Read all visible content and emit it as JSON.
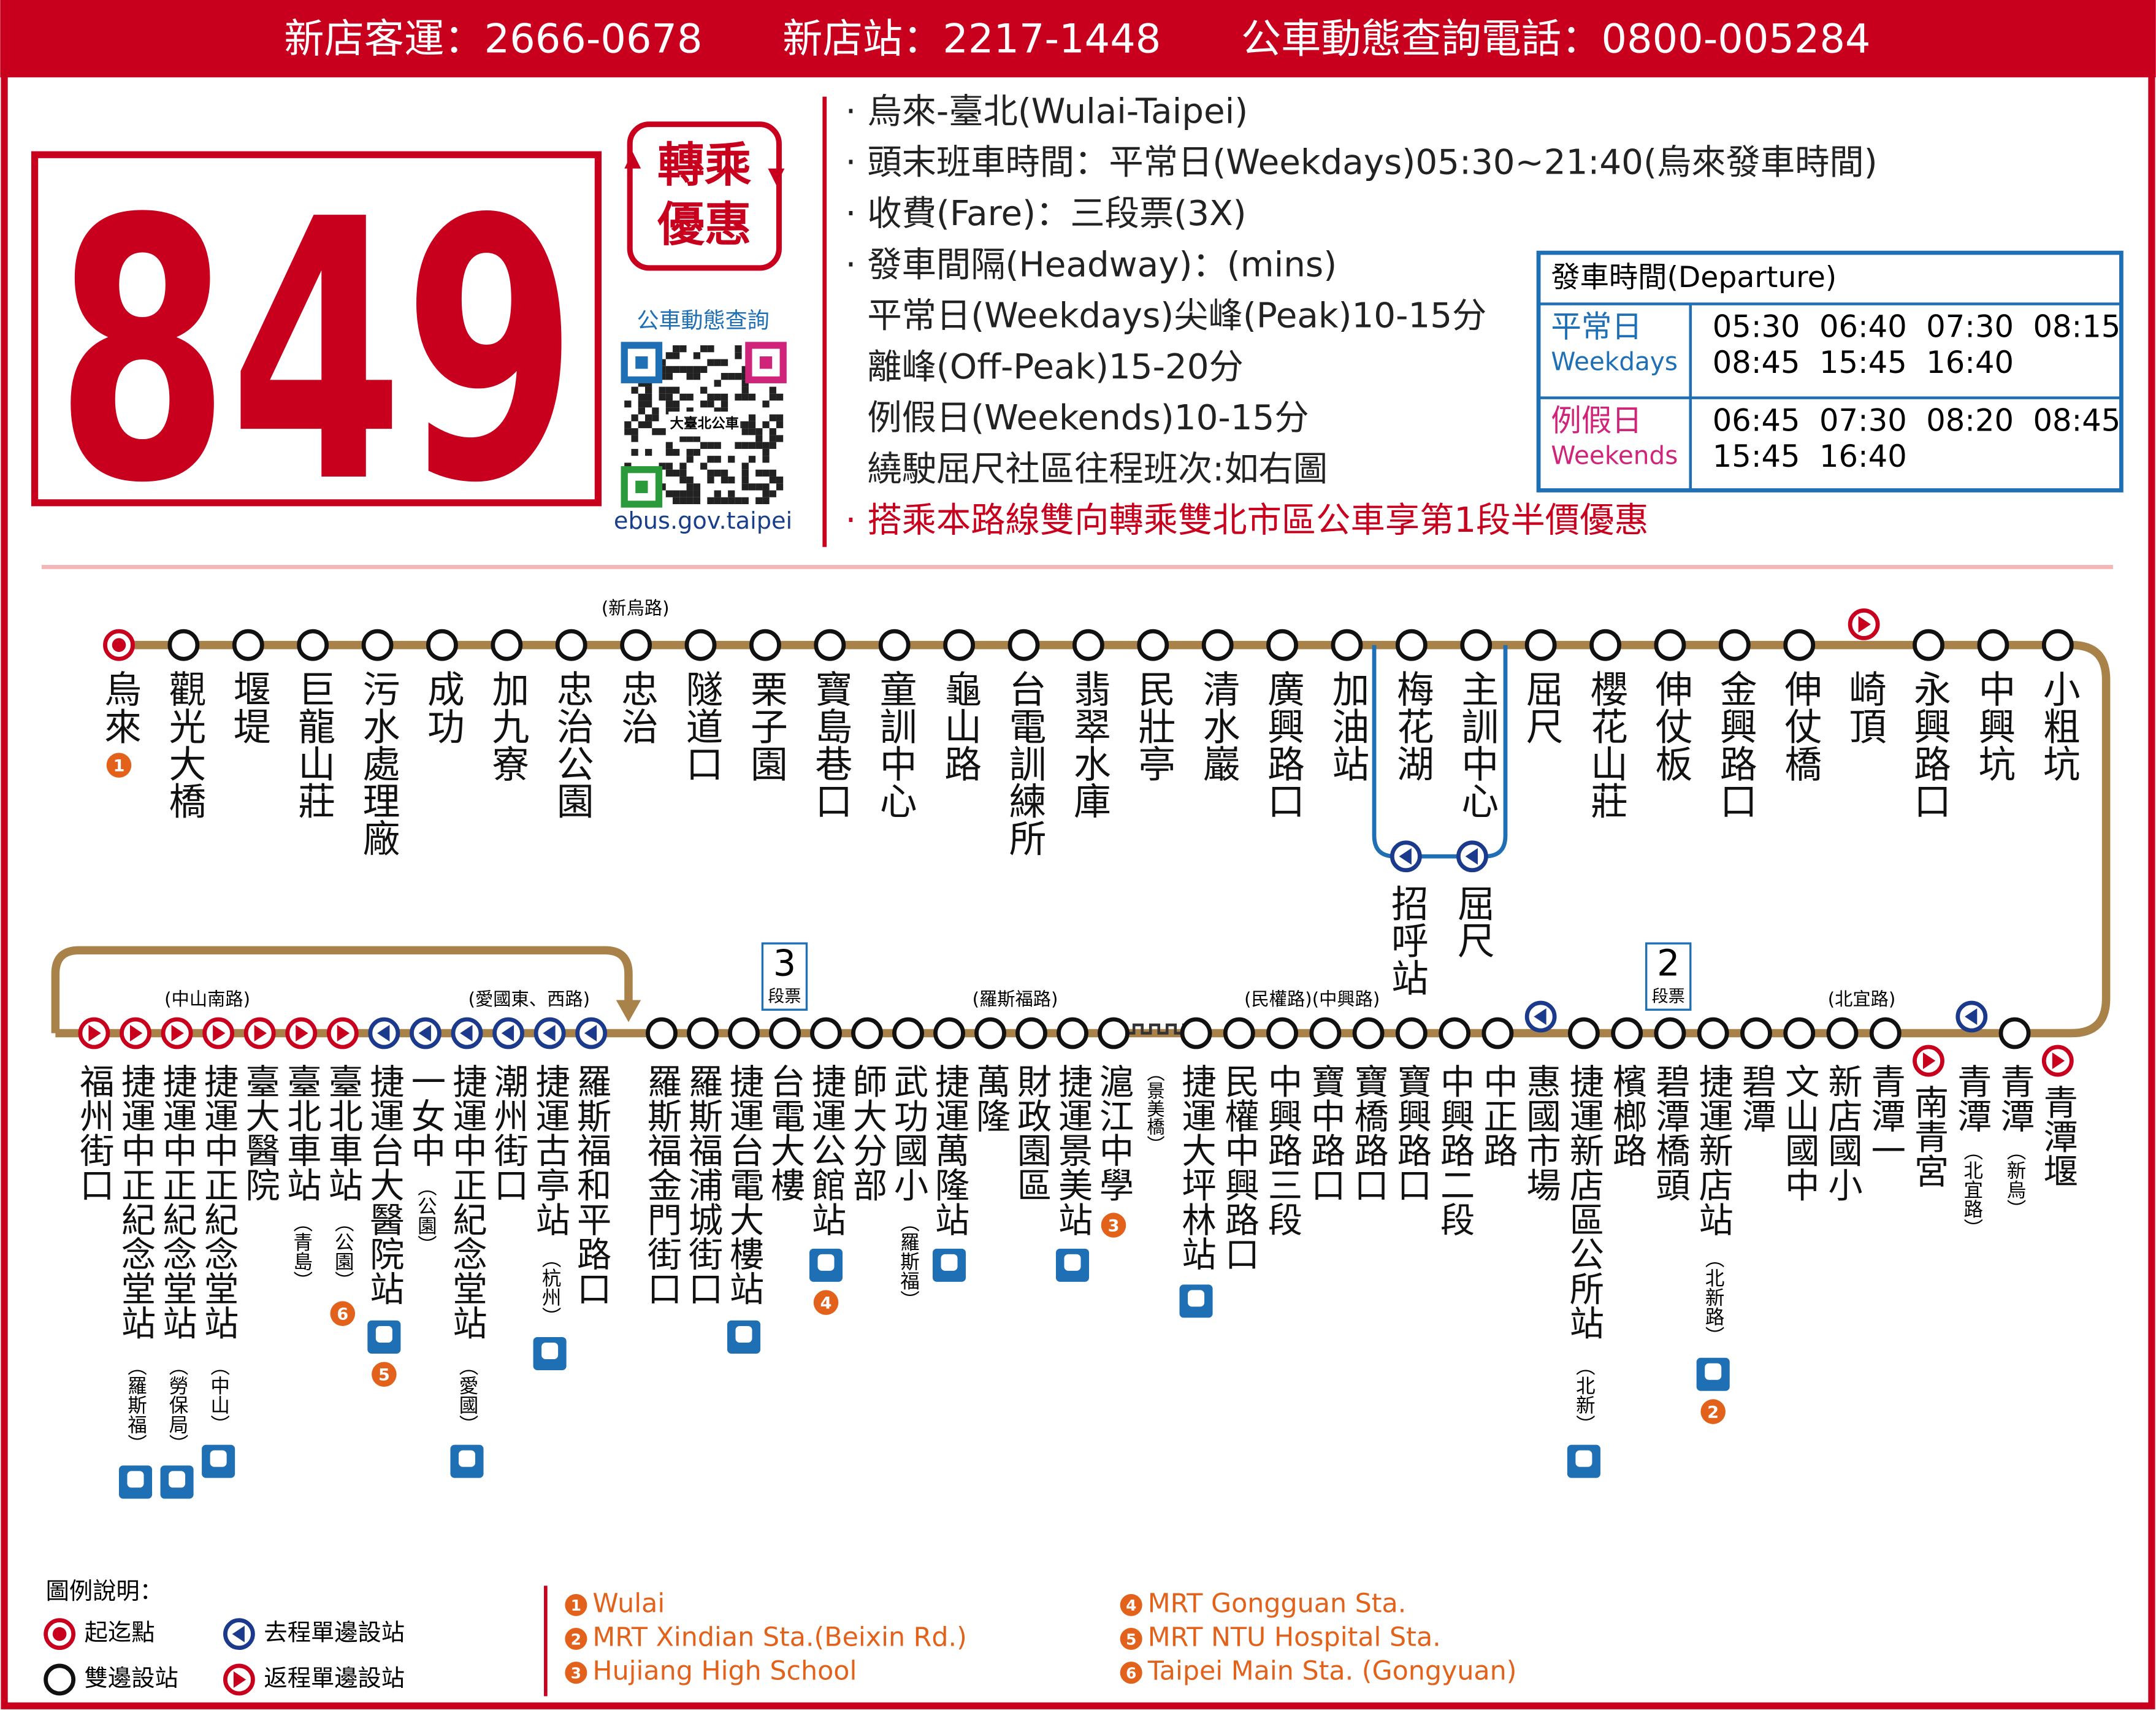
{
  "header": {
    "phones": "新店客運：2666-0678　　新店站：2217-1448　　公車動態查詢電話：0800-005284"
  },
  "route": {
    "number": "849",
    "badge": [
      "轉乘",
      "優惠"
    ],
    "qr_label": "公車動態查詢",
    "qr_text": "大臺北公車",
    "url": "ebus.gov.taipei"
  },
  "info": {
    "lines": [
      "· 烏來-臺北(Wulai-Taipei)",
      "· 頭末班車時間：平常日(Weekdays)05:30~21:40(烏來發車時間)",
      "· 收費(Fare)：三段票(3X)",
      "· 發車間隔(Headway)：(mins)",
      "  平常日(Weekdays)尖峰(Peak)10-15分",
      "  離峰(Off-Peak)15-20分",
      "  例假日(Weekends)10-15分",
      "  繞駛屈尺社區往程班次:如右圖"
    ],
    "notice": "· 搭乘本路線雙向轉乘雙北市區公車享第1段半價優惠"
  },
  "departure": {
    "title": "發車時間(Departure)",
    "rows": [
      {
        "zh": "平常日",
        "en": "Weekdays",
        "times": [
          "05:30  06:40  07:30  08:15",
          "08:45  15:45  16:40"
        ]
      },
      {
        "zh": "例假日",
        "en": "Weekends",
        "times": [
          "06:45  07:30  08:20  08:45",
          "15:45  16:40"
        ]
      }
    ]
  },
  "map": {
    "top_annotation": "(新烏路)",
    "top_stops": [
      {
        "name": "烏來",
        "kind": "end",
        "num": 1
      },
      {
        "name": "觀光大橋",
        "kind": "both"
      },
      {
        "name": "堰堤",
        "kind": "both"
      },
      {
        "name": "巨龍山莊",
        "kind": "both"
      },
      {
        "name": "污水處理廠",
        "kind": "both"
      },
      {
        "name": "成功",
        "kind": "both"
      },
      {
        "name": "加九寮",
        "kind": "both"
      },
      {
        "name": "忠治公園",
        "kind": "both"
      },
      {
        "name": "忠治",
        "kind": "both"
      },
      {
        "name": "隧道口",
        "kind": "both"
      },
      {
        "name": "栗子園",
        "kind": "both"
      },
      {
        "name": "寶島巷口",
        "kind": "both"
      },
      {
        "name": "童訓中心",
        "kind": "both"
      },
      {
        "name": "龜山路",
        "kind": "both"
      },
      {
        "name": "台電訓練所",
        "kind": "both"
      },
      {
        "name": "翡翠水庫",
        "kind": "both"
      },
      {
        "name": "民壯亭",
        "kind": "both"
      },
      {
        "name": "清水巖",
        "kind": "both"
      },
      {
        "name": "廣興路口",
        "kind": "both"
      },
      {
        "name": "加油站",
        "kind": "both"
      },
      {
        "name": "梅花湖",
        "kind": "both"
      },
      {
        "name": "主訓中心",
        "kind": "both"
      },
      {
        "name": "屈尺",
        "kind": "both"
      },
      {
        "name": "櫻花山莊",
        "kind": "both"
      },
      {
        "name": "伸仗板",
        "kind": "both"
      },
      {
        "name": "金興路口",
        "kind": "both"
      },
      {
        "name": "伸仗橋",
        "kind": "both"
      },
      {
        "name": "崎頂",
        "kind": "ret"
      },
      {
        "name": "永興路口",
        "kind": "both"
      },
      {
        "name": "中興坑",
        "kind": "both"
      },
      {
        "name": "小粗坑",
        "kind": "both"
      }
    ],
    "branch": [
      {
        "name": "招呼站",
        "kind": "out"
      },
      {
        "name": "屈尺",
        "kind": "out"
      }
    ],
    "bottom_annotations": [
      "(中山南路)",
      "(愛國東、西路)",
      "(羅斯福路)",
      "(民權路)(中興路)",
      "(北宜路)"
    ],
    "bridge_label": "（景美橋）",
    "fares": [
      {
        "num": "3",
        "label": "段票"
      },
      {
        "num": "2",
        "label": "段票"
      }
    ],
    "bottom_stops": [
      {
        "name": "福州街口",
        "kind": "ret"
      },
      {
        "name": "捷運中正紀念堂站",
        "note": "（羅斯福）",
        "kind": "ret",
        "mrt": true
      },
      {
        "name": "捷運中正紀念堂站",
        "note": "（勞保局）",
        "kind": "ret",
        "mrt": true
      },
      {
        "name": "捷運中正紀念堂站",
        "note": "（中山）",
        "kind": "ret",
        "mrt": true
      },
      {
        "name": "臺大醫院",
        "kind": "ret"
      },
      {
        "name": "臺北車站",
        "note": "（青島）",
        "kind": "ret"
      },
      {
        "name": "臺北車站",
        "note": "（公園）",
        "kind": "ret",
        "num": 6
      },
      {
        "name": "捷運台大醫院站",
        "kind": "out",
        "mrt": true,
        "num": 5
      },
      {
        "name": "一女中",
        "note": "（公園）",
        "kind": "out"
      },
      {
        "name": "捷運中正紀念堂站",
        "note": "（愛國）",
        "kind": "out",
        "mrt": true
      },
      {
        "name": "潮州街口",
        "kind": "out"
      },
      {
        "name": "捷運古亭站",
        "note": "（杭州）",
        "kind": "out",
        "mrt": true
      },
      {
        "name": "羅斯福和平路口",
        "kind": "out"
      },
      {
        "name": "羅斯福金門街口",
        "kind": "both"
      },
      {
        "name": "羅斯福浦城街口",
        "kind": "both"
      },
      {
        "name": "捷運台電大樓站",
        "kind": "both",
        "mrt": true
      },
      {
        "name": "台電大樓",
        "kind": "both"
      },
      {
        "name": "捷運公館站",
        "kind": "both",
        "mrt": true,
        "num": 4
      },
      {
        "name": "師大分部",
        "kind": "both"
      },
      {
        "name": "武功國小",
        "note": "（羅斯福）",
        "kind": "both"
      },
      {
        "name": "捷運萬隆站",
        "kind": "both",
        "mrt": true
      },
      {
        "name": "萬隆",
        "kind": "both"
      },
      {
        "name": "財政園區",
        "kind": "both"
      },
      {
        "name": "捷運景美站",
        "kind": "both",
        "mrt": true
      },
      {
        "name": "滬江中學",
        "kind": "both",
        "num": 3
      },
      {
        "name": "捷運大坪林站",
        "kind": "both",
        "mrt": true
      },
      {
        "name": "民權中興路口",
        "kind": "both"
      },
      {
        "name": "中興路三段",
        "kind": "both"
      },
      {
        "name": "寶中路口",
        "kind": "both"
      },
      {
        "name": "寶橋路口",
        "kind": "both"
      },
      {
        "name": "寶興路口",
        "kind": "both"
      },
      {
        "name": "中興路二段",
        "kind": "both"
      },
      {
        "name": "中正路",
        "kind": "both"
      },
      {
        "name": "惠國市場",
        "kind": "out"
      },
      {
        "name": "捷運新店區公所站",
        "note": "（北新）",
        "kind": "both",
        "mrt": true
      },
      {
        "name": "檳榔路",
        "kind": "both"
      },
      {
        "name": "碧潭橋頭",
        "kind": "both"
      },
      {
        "name": "捷運新店站",
        "note": "（北新路）",
        "kind": "both",
        "mrt": true,
        "num": 2
      },
      {
        "name": "碧潭",
        "kind": "both"
      },
      {
        "name": "文山國中",
        "kind": "both"
      },
      {
        "name": "新店國小",
        "kind": "both"
      },
      {
        "name": "青潭一",
        "kind": "both"
      },
      {
        "name": "南青宮",
        "kind": "ret"
      },
      {
        "name": "青潭",
        "note": "（北宜路）",
        "kind": "out"
      },
      {
        "name": "青潭",
        "note": "（新烏）",
        "kind": "both"
      },
      {
        "name": "青潭堰",
        "kind": "ret"
      }
    ]
  },
  "legend": {
    "title": "圖例說明：",
    "items": [
      {
        "kind": "end",
        "text": "起迄點"
      },
      {
        "kind": "out",
        "text": "去程單邊設站"
      },
      {
        "kind": "both",
        "text": "雙邊設站"
      },
      {
        "kind": "ret",
        "text": "返程單邊設站"
      }
    ],
    "refs": [
      {
        "num": 1,
        "text": "Wulai"
      },
      {
        "num": 2,
        "text": "MRT Xindian Sta.(Beixin Rd.)"
      },
      {
        "num": 3,
        "text": "Hujiang High School"
      },
      {
        "num": 4,
        "text": "MRT Gongguan Sta."
      },
      {
        "num": 5,
        "text": "MRT NTU Hospital Sta."
      },
      {
        "num": 6,
        "text": "Taipei Main Sta. (Gongyuan)"
      }
    ]
  }
}
